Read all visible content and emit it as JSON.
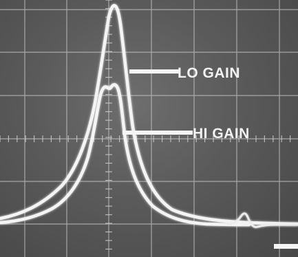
{
  "annotations": {
    "lo_gain_label": "LO GAIN",
    "hi_gain_label": "HI GAIN"
  },
  "colors": {
    "screen": "#5a5a5a",
    "grid": "#bdbdbd",
    "trace": "#f4f4f4"
  }
}
